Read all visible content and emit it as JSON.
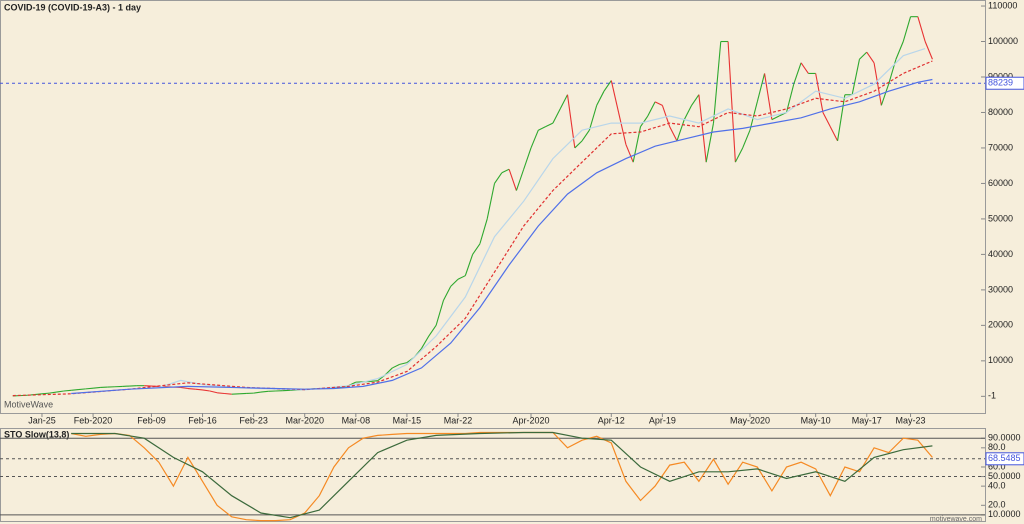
{
  "chart_data": [
    {
      "type": "line",
      "title": "COVID-19 (COVID-19-A3) - 1 day",
      "watermark": "MotiveWave",
      "xlim": [
        -1.75,
        133.2
      ],
      "xticks": [
        {
          "value": 4,
          "label": "Jan-25"
        },
        {
          "value": 11,
          "label": "Feb-2020"
        },
        {
          "value": 19,
          "label": "Feb-09"
        },
        {
          "value": 26,
          "label": "Feb-16"
        },
        {
          "value": 33,
          "label": "Feb-23"
        },
        {
          "value": 40,
          "label": "Mar-2020"
        },
        {
          "value": 47,
          "label": "Mar-08"
        },
        {
          "value": 54,
          "label": "Mar-15"
        },
        {
          "value": 61,
          "label": "Mar-22"
        },
        {
          "value": 71,
          "label": "Apr-2020"
        },
        {
          "value": 82,
          "label": "Apr-12"
        },
        {
          "value": 89,
          "label": "Apr-19"
        },
        {
          "value": 101,
          "label": "May-2020"
        },
        {
          "value": 110,
          "label": "May-10"
        },
        {
          "value": 117,
          "label": "May-17"
        },
        {
          "value": 123,
          "label": "May-23"
        }
      ],
      "ylim": [
        -4700,
        111700
      ],
      "yticks": [
        -1,
        10000,
        20000,
        30000,
        40000,
        50000,
        60000,
        70000,
        80000,
        90000,
        100000,
        110000
      ],
      "hline": 88239,
      "hline_color": "#4455dd",
      "series": [
        {
          "color_up": "#2ea82e",
          "color_down": "#e83232",
          "values": [
            100,
            200,
            300,
            500,
            700,
            900,
            1200,
            1500,
            1700,
            1900,
            2100,
            2300,
            2500,
            2600,
            2700,
            2800,
            2900,
            3000,
            3000,
            2900,
            2800,
            2700,
            2600,
            2500,
            2200,
            2000,
            1800,
            1500,
            1000,
            800,
            600,
            700,
            800,
            900,
            1200,
            1400,
            1500,
            1600,
            1700,
            1800,
            1900,
            2100,
            2200,
            2300,
            2400,
            2500,
            3000,
            4000,
            4100,
            4200,
            4400,
            6000,
            8000,
            9000,
            9500,
            11000,
            13500,
            17000,
            20000,
            27000,
            31000,
            33000,
            34000,
            40000,
            43000,
            50000,
            60000,
            63000,
            64000,
            58000,
            64000,
            70000,
            75000,
            76000,
            77000,
            81000,
            85000,
            70000,
            72000,
            75000,
            82000,
            86000,
            89000,
            80000,
            71000,
            66000,
            76000,
            79000,
            83000,
            82000,
            76000,
            72000,
            78000,
            82000,
            85000,
            66000,
            77000,
            100000,
            100000,
            66000,
            70000,
            75000,
            83000,
            91000,
            78000,
            79000,
            80000,
            88000,
            94000,
            91000,
            91000,
            80000,
            76000,
            72000,
            85000,
            85000,
            95000,
            97000,
            94000,
            82000,
            88000,
            95000,
            100000,
            107000,
            107000,
            100000,
            95000
          ]
        },
        {
          "color": "#b9d6ea",
          "dash": false,
          "x": [
            20,
            23,
            26,
            32,
            40,
            46,
            50,
            54,
            58,
            62,
            66,
            70,
            74,
            78,
            82,
            86,
            90,
            94,
            98,
            102,
            106,
            110,
            114,
            118,
            122,
            125
          ],
          "values": [
            2500,
            4500,
            3300,
            2300,
            1800,
            3000,
            5000,
            9000,
            17000,
            28000,
            45000,
            55000,
            67000,
            75000,
            77000,
            77000,
            79000,
            77000,
            81000,
            78000,
            80000,
            86000,
            84000,
            88000,
            96000,
            98000
          ]
        },
        {
          "color": "#e03030",
          "dash": true,
          "x": [
            0,
            8,
            16,
            24,
            32,
            40,
            46,
            50,
            54,
            58,
            62,
            66,
            70,
            74,
            78,
            82,
            86,
            90,
            94,
            98,
            102,
            106,
            110,
            114,
            118,
            122,
            126
          ],
          "values": [
            200,
            700,
            2000,
            3800,
            2500,
            1900,
            2800,
            4000,
            7000,
            14000,
            22000,
            35000,
            48000,
            58000,
            66000,
            74000,
            74500,
            77000,
            76000,
            80000,
            79000,
            81000,
            84000,
            83000,
            86000,
            91000,
            94500
          ]
        },
        {
          "color": "#5070e8",
          "dash": false,
          "x": [
            8,
            16,
            24,
            32,
            40,
            44,
            48,
            52,
            56,
            60,
            64,
            68,
            72,
            76,
            80,
            84,
            88,
            92,
            96,
            100,
            104,
            108,
            112,
            116,
            120,
            124,
            126
          ],
          "values": [
            800,
            2000,
            2800,
            2400,
            2000,
            2200,
            2800,
            4500,
            8000,
            15000,
            25000,
            37000,
            48000,
            57000,
            63000,
            67000,
            70500,
            72500,
            74500,
            75500,
            77000,
            78500,
            81000,
            83000,
            86000,
            88500,
            89300
          ]
        }
      ]
    },
    {
      "type": "line",
      "title": "STO Slow(13,8)",
      "footer": "motivewave.com",
      "ylim": [
        3.6,
        100.7
      ],
      "yticks": [
        {
          "value": 10,
          "label": "10.0000"
        },
        {
          "value": 20,
          "label": "20.0"
        },
        {
          "value": 40,
          "label": "40.0"
        },
        {
          "value": 50,
          "label": "50.0000"
        },
        {
          "value": 60,
          "label": "60.0"
        },
        {
          "value": 80,
          "label": "80.0"
        },
        {
          "value": 90,
          "label": "90.0000"
        }
      ],
      "levels": [
        90,
        50,
        10
      ],
      "last_value": 68.5485,
      "series": [
        {
          "color": "#f58a24",
          "x": [
            8,
            10,
            12,
            14,
            16,
            18,
            20,
            22,
            24,
            26,
            28,
            30,
            32,
            34,
            36,
            38,
            40,
            42,
            44,
            46,
            48,
            50,
            52,
            54,
            56,
            58,
            60,
            62,
            64,
            66,
            68,
            70,
            72,
            74,
            76,
            78,
            80,
            82,
            84,
            86,
            88,
            90,
            92,
            94,
            96,
            98,
            100,
            102,
            104,
            106,
            108,
            110,
            112,
            114,
            116,
            118,
            120,
            122,
            124,
            126
          ],
          "values": [
            95,
            92,
            94,
            95,
            93,
            80,
            65,
            40,
            70,
            45,
            20,
            8,
            5,
            4,
            4,
            5,
            12,
            30,
            60,
            80,
            90,
            93,
            94,
            95,
            95,
            95,
            95,
            95,
            96,
            96,
            96,
            96,
            96,
            96,
            80,
            88,
            92,
            85,
            45,
            25,
            40,
            62,
            65,
            45,
            68,
            42,
            65,
            60,
            35,
            60,
            65,
            58,
            30,
            60,
            55,
            80,
            75,
            90,
            88,
            70
          ]
        },
        {
          "color": "#3c6a3c",
          "x": [
            8,
            14,
            18,
            22,
            26,
            30,
            34,
            38,
            42,
            46,
            50,
            54,
            58,
            64,
            70,
            74,
            78,
            82,
            86,
            90,
            94,
            98,
            102,
            106,
            110,
            114,
            118,
            122,
            126
          ],
          "values": [
            95,
            95,
            90,
            70,
            55,
            30,
            12,
            7,
            15,
            45,
            75,
            88,
            93,
            95,
            96,
            96,
            90,
            88,
            60,
            45,
            55,
            55,
            58,
            48,
            55,
            45,
            70,
            78,
            82
          ]
        }
      ]
    }
  ]
}
